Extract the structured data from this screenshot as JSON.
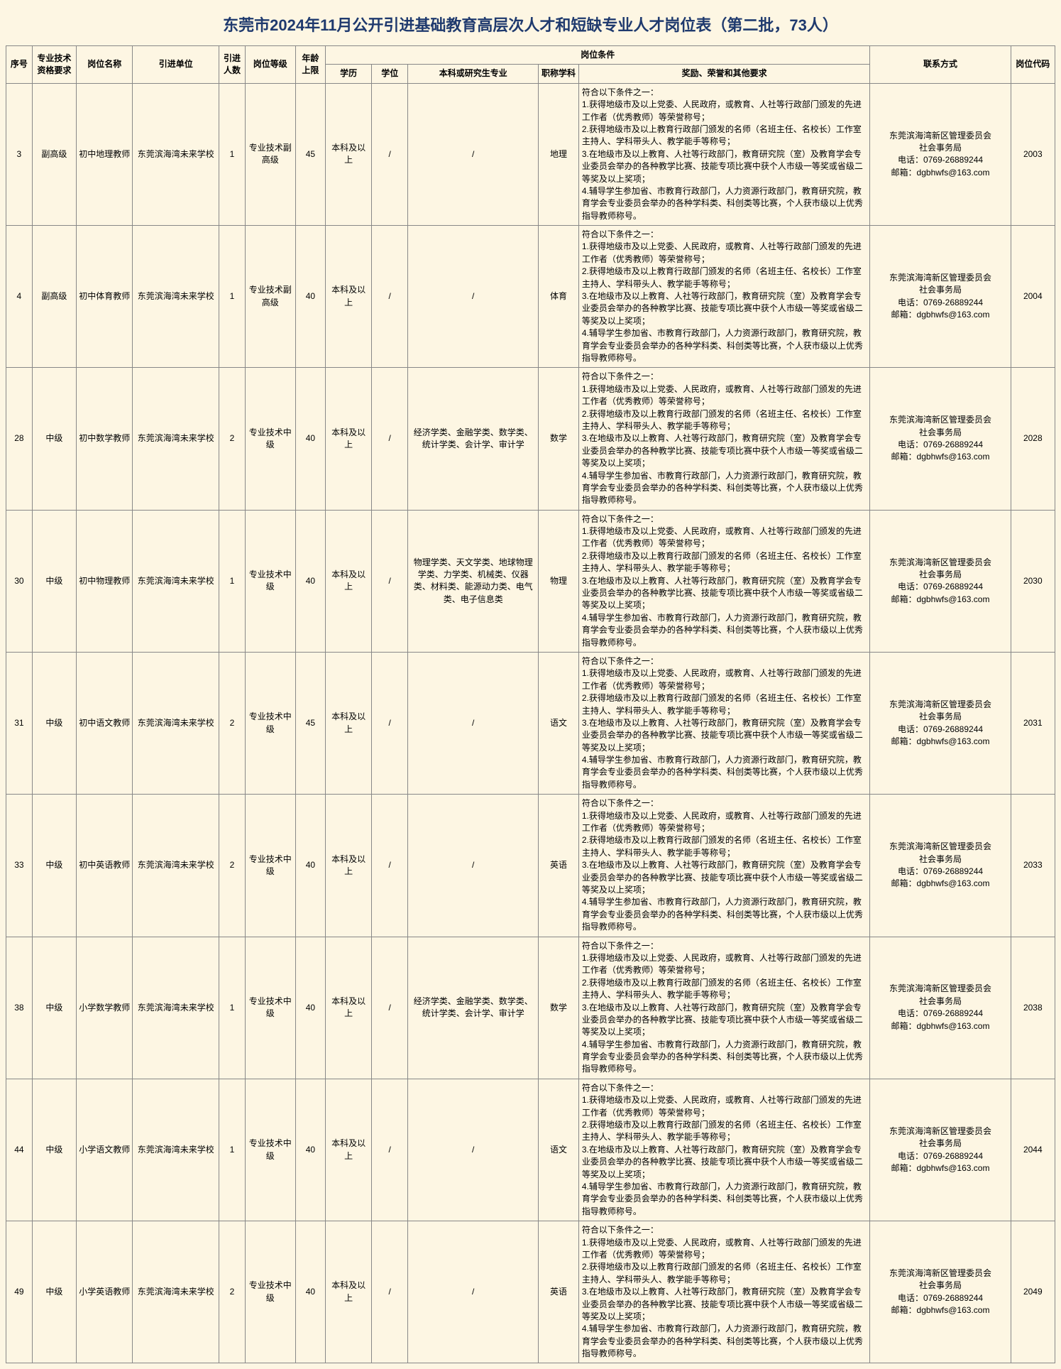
{
  "title": "东莞市2024年11月公开引进基础教育高层次人才和短缺专业人才岗位表（第二批，73人）",
  "title_color": "#1f3a6e",
  "background_color": "#fdf6e3",
  "border_color": "#888888",
  "font_family": "Microsoft YaHei",
  "body_fontsize": 12,
  "title_fontsize": 22,
  "headers": {
    "seq": "序号",
    "qual": "专业技术资格要求",
    "pname": "岗位名称",
    "unit": "引进单位",
    "num": "引进人数",
    "level": "岗位等级",
    "age": "年龄上限",
    "cond_group": "岗位条件",
    "edu": "学历",
    "deg": "学位",
    "major": "本科或研究生专业",
    "ptitle": "职称学科",
    "other": "奖励、荣誉和其他要求",
    "contact": "联系方式",
    "code": "岗位代码"
  },
  "common": {
    "unit": "东莞滨海湾未来学校",
    "edu": "本科及以上",
    "contact": "东莞滨海湾新区管理委员会\n社会事务局\n电话：0769-26889244\n邮箱：dgbhwfs@163.com",
    "other": "符合以下条件之一：\n1.获得地级市及以上党委、人民政府，或教育、人社等行政部门颁发的先进工作者（优秀教师）等荣誉称号；\n2.获得地级市及以上教育行政部门颁发的名师（名班主任、名校长）工作室主持人、学科带头人、教学能手等称号；\n3.在地级市及以上教育、人社等行政部门，教育研究院（室）及教育学会专业委员会举办的各种教学比赛、技能专项比赛中获个人市级一等奖或省级二等奖及以上奖项；\n4.辅导学生参加省、市教育行政部门，人力资源行政部门，教育研究院，教育学会专业委员会举办的各种学科类、科创类等比赛，个人获市级以上优秀指导教师称号。"
  },
  "rows": [
    {
      "seq": "3",
      "qual": "副高级",
      "pname": "初中地理教师",
      "num": "1",
      "level": "专业技术副高级",
      "age": "45",
      "deg": "/",
      "major": "/",
      "ptitle": "地理",
      "code": "2003"
    },
    {
      "seq": "4",
      "qual": "副高级",
      "pname": "初中体育教师",
      "num": "1",
      "level": "专业技术副高级",
      "age": "40",
      "deg": "/",
      "major": "/",
      "ptitle": "体育",
      "code": "2004"
    },
    {
      "seq": "28",
      "qual": "中级",
      "pname": "初中数学教师",
      "num": "2",
      "level": "专业技术中级",
      "age": "40",
      "deg": "/",
      "major": "经济学类、金融学类、数学类、统计学类、会计学、审计学",
      "ptitle": "数学",
      "code": "2028"
    },
    {
      "seq": "30",
      "qual": "中级",
      "pname": "初中物理教师",
      "num": "1",
      "level": "专业技术中级",
      "age": "40",
      "deg": "/",
      "major": "物理学类、天文学类、地球物理学类、力学类、机械类、仪器类、材料类、能源动力类、电气类、电子信息类",
      "ptitle": "物理",
      "code": "2030"
    },
    {
      "seq": "31",
      "qual": "中级",
      "pname": "初中语文教师",
      "num": "2",
      "level": "专业技术中级",
      "age": "45",
      "deg": "/",
      "major": "/",
      "ptitle": "语文",
      "code": "2031"
    },
    {
      "seq": "33",
      "qual": "中级",
      "pname": "初中英语教师",
      "num": "2",
      "level": "专业技术中级",
      "age": "40",
      "deg": "/",
      "major": "/",
      "ptitle": "英语",
      "code": "2033"
    },
    {
      "seq": "38",
      "qual": "中级",
      "pname": "小学数学教师",
      "num": "1",
      "level": "专业技术中级",
      "age": "40",
      "deg": "/",
      "major": "经济学类、金融学类、数学类、统计学类、会计学、审计学",
      "ptitle": "数学",
      "code": "2038"
    },
    {
      "seq": "44",
      "qual": "中级",
      "pname": "小学语文教师",
      "num": "1",
      "level": "专业技术中级",
      "age": "40",
      "deg": "/",
      "major": "/",
      "ptitle": "语文",
      "code": "2044"
    },
    {
      "seq": "49",
      "qual": "中级",
      "pname": "小学英语教师",
      "num": "2",
      "level": "专业技术中级",
      "age": "40",
      "deg": "/",
      "major": "/",
      "ptitle": "英语",
      "code": "2049"
    }
  ]
}
